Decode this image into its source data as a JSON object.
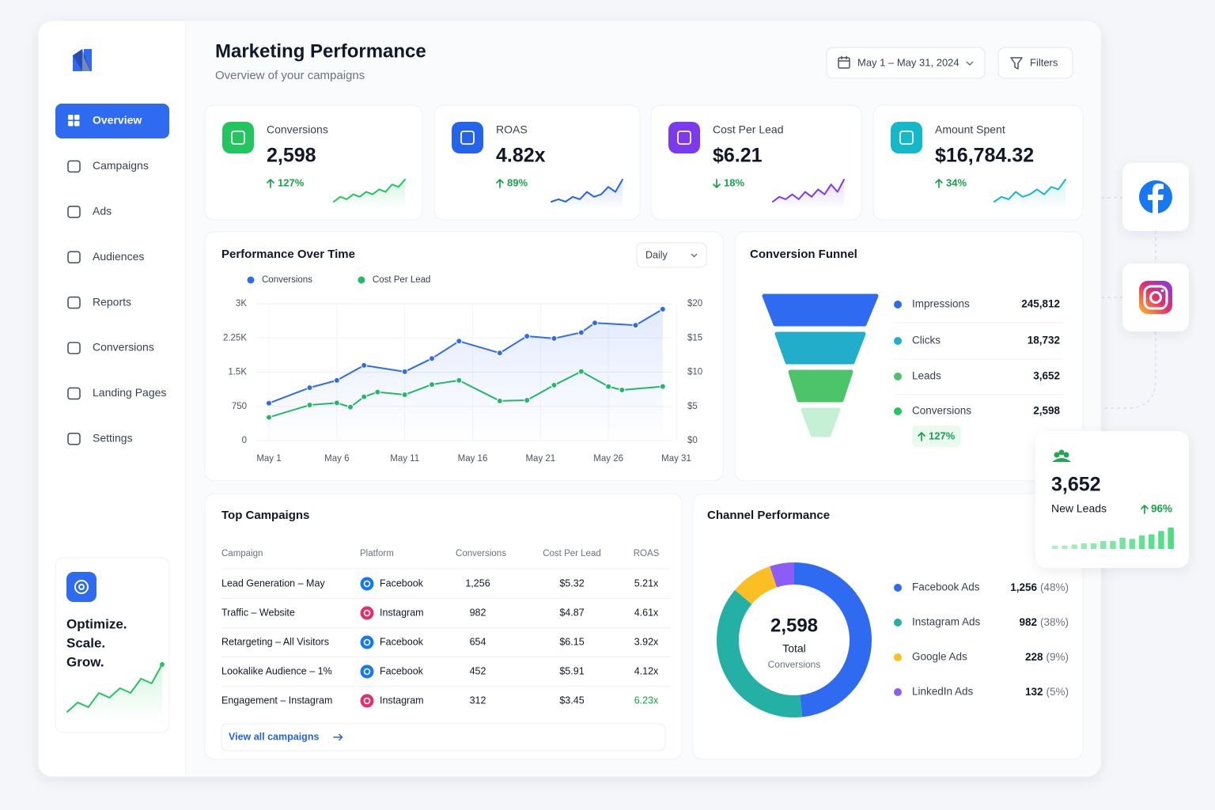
{
  "sidebar": {
    "nav": [
      "Overview",
      "Campaigns",
      "Ads",
      "Audiences",
      "Reports",
      "Conversions",
      "Landing Pages",
      "Settings"
    ],
    "active": 0,
    "promo": [
      "Optimize.",
      "Scale.",
      "Grow."
    ],
    "promo_spark": [
      0,
      2,
      1,
      4,
      3,
      5,
      4,
      7,
      6,
      10
    ],
    "promo_color": "#22c55e"
  },
  "header": {
    "title": "Marketing Performance",
    "subtitle": "Overview of your campaigns",
    "date_range": "May 1 – May 31, 2024",
    "filters": "Filters"
  },
  "kpis": [
    {
      "label": "Conversions",
      "value": "2,598",
      "change": "127%",
      "direction": "up",
      "color": "#22c55e",
      "spark": [
        1,
        3,
        2,
        4,
        3,
        5,
        4,
        6,
        5,
        8,
        7,
        10
      ]
    },
    {
      "label": "ROAS",
      "value": "4.82x",
      "change": "89%",
      "direction": "up",
      "color": "#2563eb",
      "spark": [
        1,
        2,
        1,
        3,
        2,
        5,
        3,
        4,
        7,
        5,
        10
      ]
    },
    {
      "label": "Cost Per Lead",
      "value": "$6.21",
      "change": "18%",
      "direction": "down",
      "color": "#7c3aed",
      "spark": [
        1,
        3,
        2,
        4,
        2,
        5,
        3,
        6,
        4,
        8,
        5,
        10
      ]
    },
    {
      "label": "Amount Spent",
      "value": "$16,784.32",
      "change": "34%",
      "direction": "up",
      "color": "#14b8c8",
      "spark": [
        1,
        3,
        2,
        5,
        3,
        4,
        6,
        4,
        7,
        6,
        10
      ]
    }
  ],
  "performance": {
    "type": "line",
    "title": "Performance Over Time",
    "period": "Daily",
    "xlim": [
      1,
      31
    ],
    "xticks": [
      {
        "value": 1,
        "label": "May 1"
      },
      {
        "value": 6,
        "label": "May 6"
      },
      {
        "value": 11,
        "label": "May 11"
      },
      {
        "value": 16,
        "label": "May 16"
      },
      {
        "value": 21,
        "label": "May 21"
      },
      {
        "value": 26,
        "label": "May 26"
      },
      {
        "value": 31,
        "label": "May 31"
      }
    ],
    "ylim": [
      0,
      3000
    ],
    "yticks": [
      0,
      750,
      {
        "value": 1500,
        "label": "1.5K"
      },
      {
        "value": 2250,
        "label": "2.25K"
      },
      {
        "value": 3000,
        "label": "3K"
      }
    ],
    "y2lim": [
      0,
      20
    ],
    "y2ticks": [
      {
        "value": 0,
        "label": "$0"
      },
      {
        "value": 5,
        "label": "$5"
      },
      {
        "value": 10,
        "label": "$10"
      },
      {
        "value": 15,
        "label": "$15"
      },
      {
        "value": 20,
        "label": "$20"
      }
    ],
    "grid": true,
    "series": [
      {
        "name": "Conversions",
        "color": "#2f6bf0",
        "x": [
          1,
          4,
          6,
          8,
          11,
          13,
          15,
          18,
          20,
          22,
          24,
          25,
          28,
          30
        ],
        "values": [
          820,
          1160,
          1320,
          1650,
          1510,
          1800,
          2180,
          1920,
          2290,
          2240,
          2370,
          2580,
          2530,
          2880
        ]
      },
      {
        "name": "Cost Per Lead",
        "color": "#22b866",
        "axis": "y2",
        "x": [
          1,
          4,
          6,
          7,
          8,
          9,
          11,
          13,
          15,
          18,
          20,
          22,
          24,
          26,
          27,
          30
        ],
        "values": [
          3.4,
          5.2,
          5.5,
          4.9,
          6.4,
          7.1,
          6.7,
          8.2,
          8.8,
          5.8,
          5.9,
          8.1,
          10.1,
          7.9,
          7.4,
          7.9
        ]
      }
    ]
  },
  "funnel": {
    "type": "funnel",
    "title": "Conversion Funnel",
    "categories": [
      "Impressions",
      "Clicks",
      "Leads",
      "Conversions"
    ],
    "values": [
      245812,
      18732,
      3652,
      2598
    ],
    "value_labels": [
      "245,812",
      "18,732",
      "3,652",
      "2,598"
    ],
    "colors": [
      "#2f6bf0",
      "#22aecb",
      "#4cc46a",
      "#22c55e"
    ],
    "change": "127%"
  },
  "campaigns": {
    "title": "Top Campaigns",
    "columns": [
      "Campaign",
      "Platform",
      "Conversions",
      "Cost Per Lead",
      "ROAS"
    ],
    "rows": [
      {
        "cells": [
          "Lead Generation – May",
          "Facebook",
          "1,256",
          "$5.32",
          "5.21x"
        ],
        "icon_color": "#1877f2"
      },
      {
        "cells": [
          "Traffic – Website",
          "Instagram",
          "982",
          "$4.87",
          "4.61x"
        ],
        "icon_color": "#e1306c"
      },
      {
        "cells": [
          "Retargeting – All Visitors",
          "Facebook",
          "654",
          "$6.15",
          "3.92x"
        ],
        "icon_color": "#1877f2"
      },
      {
        "cells": [
          "Lookalike Audience – 1%",
          "Facebook",
          "452",
          "$5.91",
          "4.12x"
        ],
        "icon_color": "#1877f2"
      },
      {
        "cells": [
          "Engagement – Instagram",
          "Instagram",
          "312",
          "$3.45",
          "6.23x"
        ],
        "icon_color": "#e1306c",
        "roas_color": "#16a34a"
      }
    ],
    "link": "View all campaigns"
  },
  "channels": {
    "type": "pie",
    "title": "Channel Performance",
    "categories": [
      "Facebook Ads",
      "Instagram Ads",
      "Google Ads",
      "LinkedIn Ads"
    ],
    "values": [
      1256,
      982,
      228,
      132
    ],
    "value_labels": [
      "1,256",
      "982",
      "228",
      "132"
    ],
    "share_labels": [
      "(48%)",
      "(38%)",
      "(9%)",
      "(5%)"
    ],
    "colors": [
      "#2f6bf0",
      "#25b0a5",
      "#fbbf24",
      "#8b5cf6"
    ],
    "total": "2,598",
    "total_label": "Total",
    "total_sub": "Conversions"
  },
  "leads": {
    "value": "3,652",
    "label": "New Leads",
    "change": "96%",
    "bars": [
      3,
      3,
      4,
      5,
      5,
      7,
      7,
      10,
      9,
      12,
      13,
      16,
      19
    ],
    "color": "#4ade80"
  }
}
